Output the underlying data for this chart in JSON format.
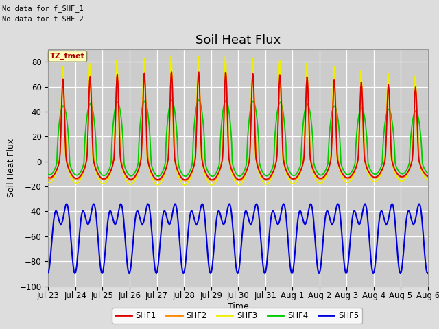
{
  "title": "Soil Heat Flux",
  "ylabel": "Soil Heat Flux",
  "xlabel": "Time",
  "no_data_text_1": "No data for f_SHF_1",
  "no_data_text_2": "No data for f_SHF_2",
  "tz_label": "TZ_fmet",
  "ylim": [
    -100,
    90
  ],
  "yticks": [
    -100,
    -80,
    -60,
    -40,
    -20,
    0,
    20,
    40,
    60,
    80
  ],
  "x_tick_labels": [
    "Jul 23",
    "Jul 24",
    "Jul 25",
    "Jul 26",
    "Jul 27",
    "Jul 28",
    "Jul 29",
    "Jul 30",
    "Jul 31",
    "Aug 1",
    "Aug 2",
    "Aug 3",
    "Aug 4",
    "Aug 5",
    "Aug 6"
  ],
  "colors": {
    "SHF1": "#dd0000",
    "SHF2": "#ff8800",
    "SHF3": "#eeee00",
    "SHF4": "#00cc00",
    "SHF5": "#0000dd"
  },
  "background_color": "#dddddd",
  "plot_bg_color": "#cccccc",
  "grid_color": "#ffffff",
  "title_fontsize": 13,
  "label_fontsize": 9,
  "tick_fontsize": 8.5
}
